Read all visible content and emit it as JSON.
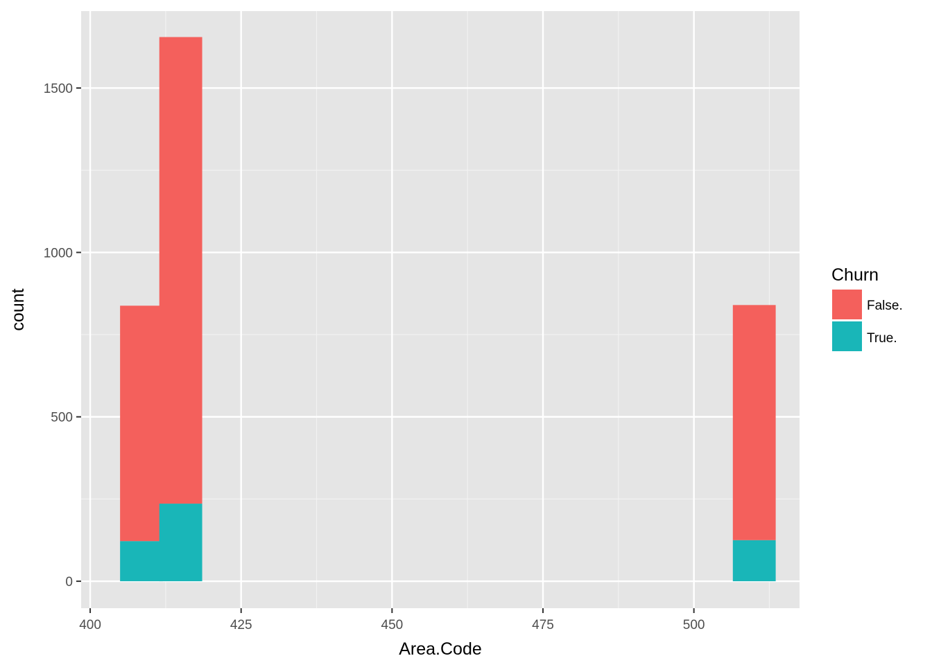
{
  "chart_data": {
    "type": "bar",
    "stacked": true,
    "xlabel": "Area.Code",
    "ylabel": "count",
    "xlim": [
      398.5,
      517.5
    ],
    "ylim": [
      -82,
      1734
    ],
    "x_ticks": [
      400,
      425,
      450,
      475,
      500
    ],
    "y_ticks": [
      0,
      500,
      1000,
      1500
    ],
    "x_tick_labels": [
      "400",
      "425",
      "450",
      "475",
      "500"
    ],
    "y_tick_labels": [
      "0",
      "500",
      "1000",
      "1500"
    ],
    "bin_width": 7.1,
    "x": [
      408.5,
      415.0,
      510.0
    ],
    "series": [
      {
        "name": "True.",
        "color": "#19B6B8",
        "values": [
          122,
          236,
          125
        ]
      },
      {
        "name": "False.",
        "color": "#F4605C",
        "values": [
          716,
          1419,
          715
        ]
      }
    ],
    "grid": true,
    "legend": {
      "title": "Churn",
      "position": "right",
      "entries": [
        "False.",
        "True."
      ]
    },
    "background": "#E5E5E5"
  }
}
